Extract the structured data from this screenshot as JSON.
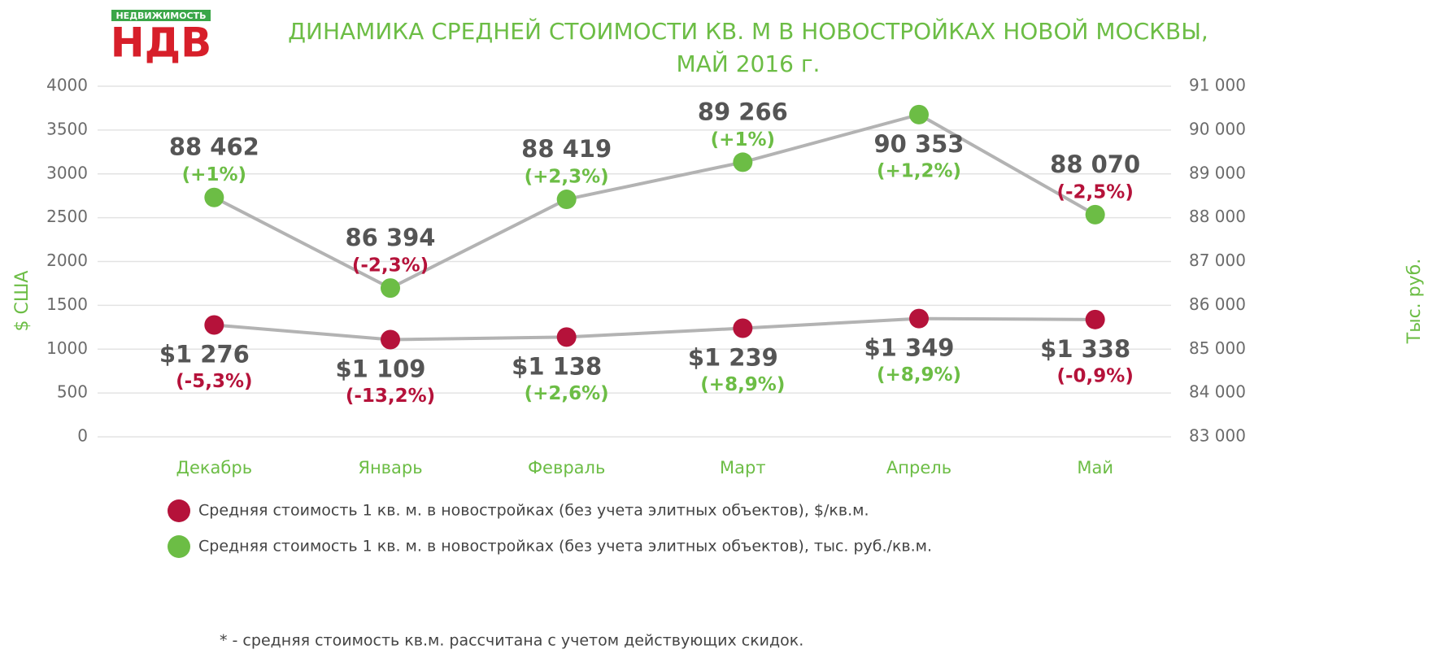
{
  "logo": {
    "top": "НЕДВИЖИМОСТЬ",
    "main": "НДВ"
  },
  "chart_data": {
    "type": "line",
    "title": "ДИНАМИКА СРЕДНЕЙ СТОИМОСТИ КВ. М В НОВОСТРОЙКАХ НОВОЙ МОСКВЫ,",
    "subtitle": "МАЙ 2016 г.",
    "y_label": "$ США",
    "y2_label": "Тыс. руб.",
    "categories": [
      "Декабрь",
      "Январь",
      "Февраль",
      "Март",
      "Апрель",
      "Май"
    ],
    "ylim": [
      0,
      4000
    ],
    "yticks": [
      0,
      500,
      1000,
      1500,
      2000,
      2500,
      3000,
      3500,
      4000
    ],
    "y2lim": [
      83000,
      91000
    ],
    "y2ticks": [
      {
        "value": 83000,
        "label": "83 000"
      },
      {
        "value": 84000,
        "label": "84 000"
      },
      {
        "value": 85000,
        "label": "85 000"
      },
      {
        "value": 86000,
        "label": "86 000"
      },
      {
        "value": 87000,
        "label": "87 000"
      },
      {
        "value": 88000,
        "label": "88 000"
      },
      {
        "value": 89000,
        "label": "89 000"
      },
      {
        "value": 90000,
        "label": "90 000"
      },
      {
        "value": 91000,
        "label": "91 000"
      }
    ],
    "grid": true,
    "line_color": "#b3b3b3",
    "series": [
      {
        "name": "Средняя стоимость 1 кв. м. в новостройках (без учета элитных объектов), $/кв.м.",
        "color": "#b5123a",
        "values": [
          1276,
          1109,
          1138,
          1239,
          1349,
          1338
        ],
        "value_labels": [
          "$1 276",
          "$1 109",
          "$1 138",
          "$1 239",
          "$1 349",
          "$1 338"
        ],
        "change_labels": [
          "(-5,3%)",
          "(-13,2%)",
          "(+2,6%)",
          "(+8,9%)",
          "(+8,9%)",
          "(-0,9%)"
        ]
      },
      {
        "name": "Средняя стоимость 1 кв. м. в новостройках (без учета элитных объектов), тыс. руб./кв.м.",
        "color": "#6cbd45",
        "axis": "y2",
        "values": [
          88462,
          86394,
          88419,
          89266,
          90353,
          88070
        ],
        "value_labels": [
          "88 462",
          "86 394",
          "88 419",
          "89 266",
          "90 353",
          "88 070"
        ],
        "change_labels": [
          "(+1%)",
          "(-2,3%)",
          "(+2,3%)",
          "(+1%)",
          "(+1,2%)",
          "(-2,5%)"
        ]
      }
    ],
    "footnote": "* - средняя стоимость кв.м. рассчитана с учетом действующих скидок."
  }
}
